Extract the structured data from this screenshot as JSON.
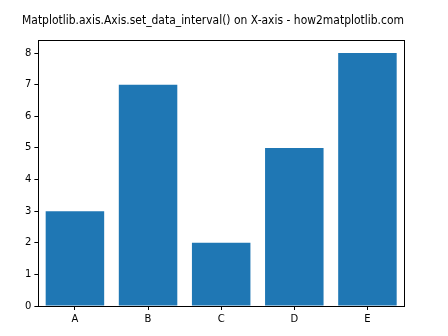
{
  "chart_data": {
    "type": "bar",
    "title": "Matplotlib.axis.Axis.set_data_interval() on X-axis - how2matplotlib.com",
    "categories": [
      "A",
      "B",
      "C",
      "D",
      "E"
    ],
    "values": [
      3,
      7,
      2,
      5,
      8
    ],
    "color": "#1f77b4",
    "ylim": [
      0,
      8.4
    ],
    "yticks": [
      0,
      1,
      2,
      3,
      4,
      5,
      6,
      7,
      8
    ],
    "grid": false
  }
}
